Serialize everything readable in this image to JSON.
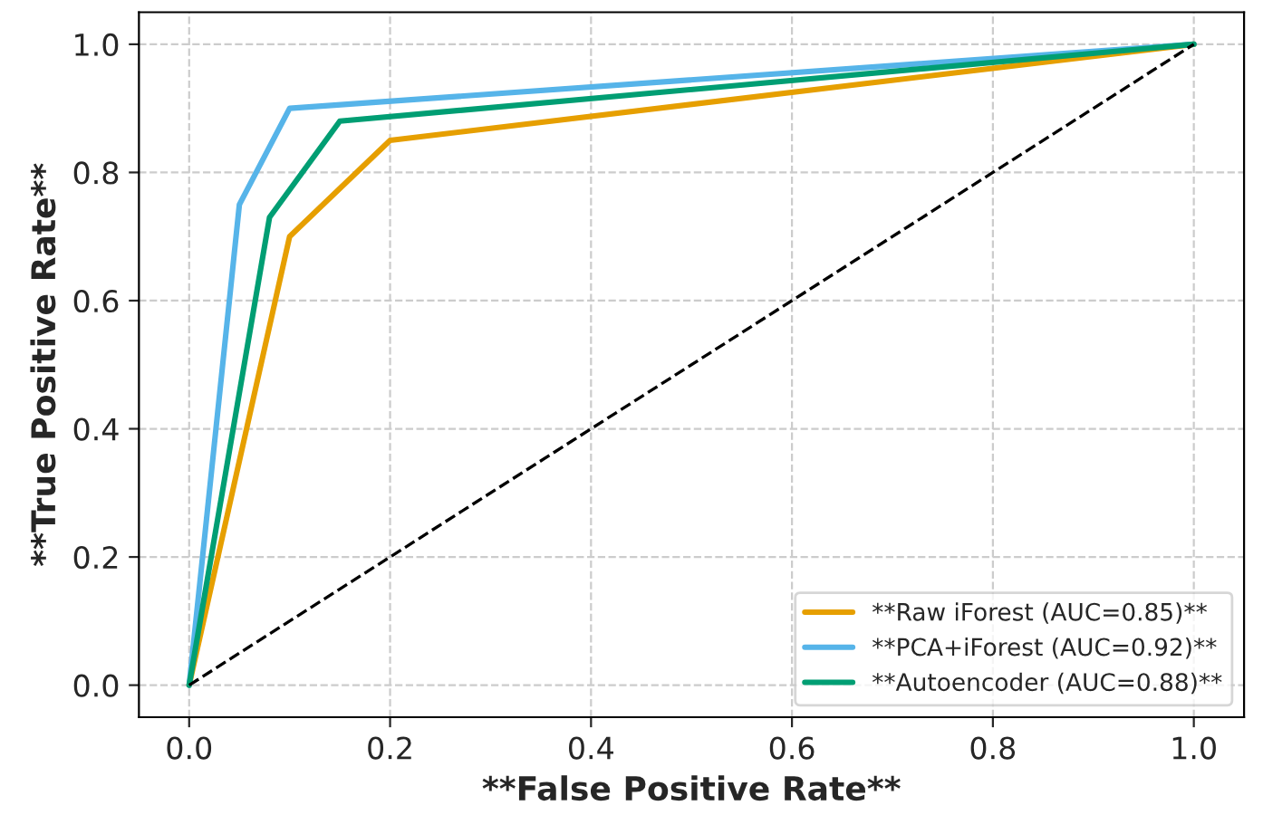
{
  "chart_data": {
    "type": "line",
    "xlabel": "**False Positive Rate**",
    "ylabel": "**True Positive Rate**",
    "xlim": [
      -0.05,
      1.05
    ],
    "ylim": [
      -0.05,
      1.05
    ],
    "xticks": [
      {
        "value": 0,
        "label": "0.0"
      },
      {
        "value": 0.2,
        "label": "0.2"
      },
      {
        "value": 0.4,
        "label": "0.4"
      },
      {
        "value": 0.6,
        "label": "0.6"
      },
      {
        "value": 0.8,
        "label": "0.8"
      },
      {
        "value": 1,
        "label": "1.0"
      }
    ],
    "yticks": [
      {
        "value": 0,
        "label": "0.0"
      },
      {
        "value": 0.2,
        "label": "0.2"
      },
      {
        "value": 0.4,
        "label": "0.4"
      },
      {
        "value": 0.6,
        "label": "0.6"
      },
      {
        "value": 0.8,
        "label": "0.8"
      },
      {
        "value": 1,
        "label": "1.0"
      }
    ],
    "grid": true,
    "legend": "bottom right",
    "marker": "none",
    "series": [
      {
        "name": "**Raw iForest (AUC=0.85)**",
        "color": "#e69f00",
        "x": [
          0,
          0.1,
          0.2,
          1
        ],
        "values": [
          0,
          0.7,
          0.85,
          1
        ],
        "line_style": "solid"
      },
      {
        "name": "**PCA+iForest (AUC=0.92)**",
        "color": "#56b4e9",
        "x": [
          0,
          0.05,
          0.1,
          1
        ],
        "values": [
          0,
          0.75,
          0.9,
          1
        ],
        "line_style": "solid"
      },
      {
        "name": "**Autoencoder (AUC=0.88)**",
        "color": "#009e73",
        "x": [
          0,
          0.08,
          0.15,
          1
        ],
        "values": [
          0,
          0.73,
          0.88,
          1
        ],
        "line_style": "solid"
      },
      {
        "color": "#000000",
        "x": [
          0,
          1
        ],
        "values": [
          0,
          1
        ],
        "line_style": "dashed"
      }
    ]
  }
}
